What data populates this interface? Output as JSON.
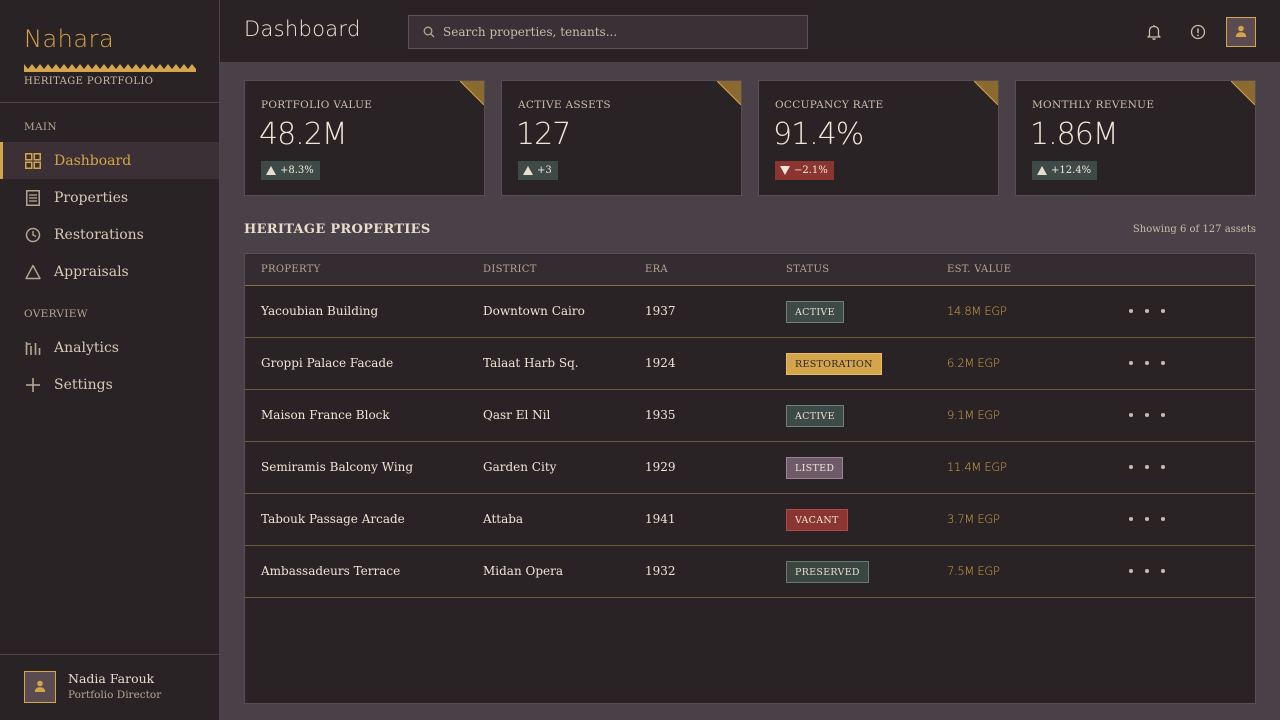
{
  "brand": {
    "name": "Nahara",
    "subtitle": "HERITAGE PORTFOLIO"
  },
  "nav": {
    "main_label": "MAIN",
    "overview_label": "OVERVIEW",
    "items": [
      {
        "label": "Dashboard",
        "icon": "grid-icon",
        "active": true
      },
      {
        "label": "Properties",
        "icon": "building-icon"
      },
      {
        "label": "Restorations",
        "icon": "clock-icon"
      },
      {
        "label": "Appraisals",
        "icon": "triangle-icon"
      },
      {
        "label": "Analytics",
        "icon": "bar-chart-icon"
      },
      {
        "label": "Settings",
        "icon": "plus-icon"
      }
    ]
  },
  "user": {
    "name": "Nadia Farouk",
    "role": "Portfolio Director"
  },
  "header": {
    "title": "Dashboard",
    "search_placeholder": "Search properties, tenants..."
  },
  "stats": [
    {
      "label": "PORTFOLIO VALUE",
      "value": "48.2M",
      "change": "+8.3%",
      "direction": "up"
    },
    {
      "label": "ACTIVE ASSETS",
      "value": "127",
      "change": "+3",
      "direction": "up"
    },
    {
      "label": "OCCUPANCY RATE",
      "value": "91.4%",
      "change": "−2.1%",
      "direction": "down"
    },
    {
      "label": "MONTHLY REVENUE",
      "value": "1.86M",
      "change": "+12.4%",
      "direction": "up"
    }
  ],
  "table": {
    "title": "HERITAGE PROPERTIES",
    "meta": "Showing 6 of 127 assets",
    "columns": [
      "PROPERTY",
      "DISTRICT",
      "ERA",
      "STATUS",
      "EST. VALUE"
    ],
    "rows": [
      {
        "property": "Yacoubian Building",
        "district": "Downtown Cairo",
        "era": "1937",
        "status": "ACTIVE",
        "value": "14.8M EGP"
      },
      {
        "property": "Groppi Palace Facade",
        "district": "Talaat Harb Sq.",
        "era": "1924",
        "status": "RESTORATION",
        "value": "6.2M EGP"
      },
      {
        "property": "Maison France Block",
        "district": "Qasr El Nil",
        "era": "1935",
        "status": "ACTIVE",
        "value": "9.1M EGP"
      },
      {
        "property": "Semiramis Balcony Wing",
        "district": "Garden City",
        "era": "1929",
        "status": "LISTED",
        "value": "11.4M EGP"
      },
      {
        "property": "Tabouk Passage Arcade",
        "district": "Attaba",
        "era": "1941",
        "status": "VACANT",
        "value": "3.7M EGP"
      },
      {
        "property": "Ambassadeurs Terrace",
        "district": "Midan Opera",
        "era": "1932",
        "status": "PRESERVED",
        "value": "7.5M EGP"
      }
    ]
  },
  "colors": {
    "accent": "#d4a54a",
    "status_active": "#3e4a47",
    "status_restoration": "#d4a54a",
    "status_listed": "#6e5a68",
    "status_vacant": "#8a3531",
    "status_preserved": "#3a4642"
  }
}
